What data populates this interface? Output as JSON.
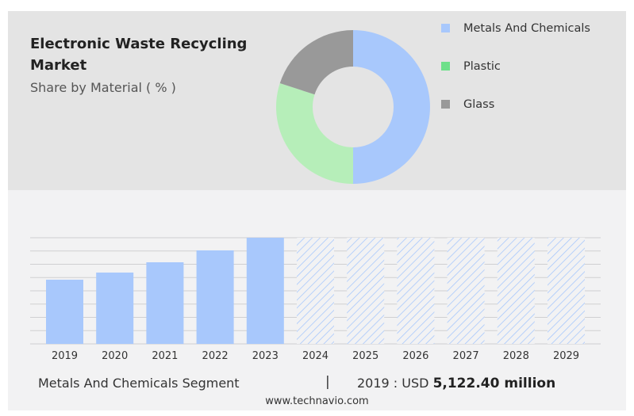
{
  "header": {
    "title": "Electronic Waste Recycling Market",
    "subtitle": "Share by Material ( % )"
  },
  "colors": {
    "metals": "#a8c8fc",
    "plastic": "#b6eeb9",
    "glass": "#999999",
    "legend_plastic": "#6ee08a"
  },
  "chart_data": [
    {
      "type": "pie",
      "donut": true,
      "title": "Share by Material ( % )",
      "labels": [
        "Metals And Chemicals",
        "Plastic",
        "Glass"
      ],
      "values": [
        50,
        30,
        20
      ],
      "legend_position": "right"
    },
    {
      "type": "bar",
      "categories": [
        "2019",
        "2020",
        "2021",
        "2022",
        "2023",
        "2024",
        "2025",
        "2026",
        "2027",
        "2028",
        "2029"
      ],
      "values": [
        5122.4,
        5690,
        6510,
        7460,
        8470,
        null,
        null,
        null,
        null,
        null,
        null
      ],
      "forecast": [
        false,
        false,
        false,
        false,
        false,
        true,
        true,
        true,
        true,
        true,
        true
      ],
      "ylim": [
        0,
        8470
      ],
      "grid": true,
      "xlabel": "",
      "ylabel": ""
    }
  ],
  "footer": {
    "segment": "Metals And Chemicals Segment",
    "separator": "|",
    "year_label": "2019 : USD",
    "value": "5,122.40 million",
    "site": "www.technavio.com"
  }
}
